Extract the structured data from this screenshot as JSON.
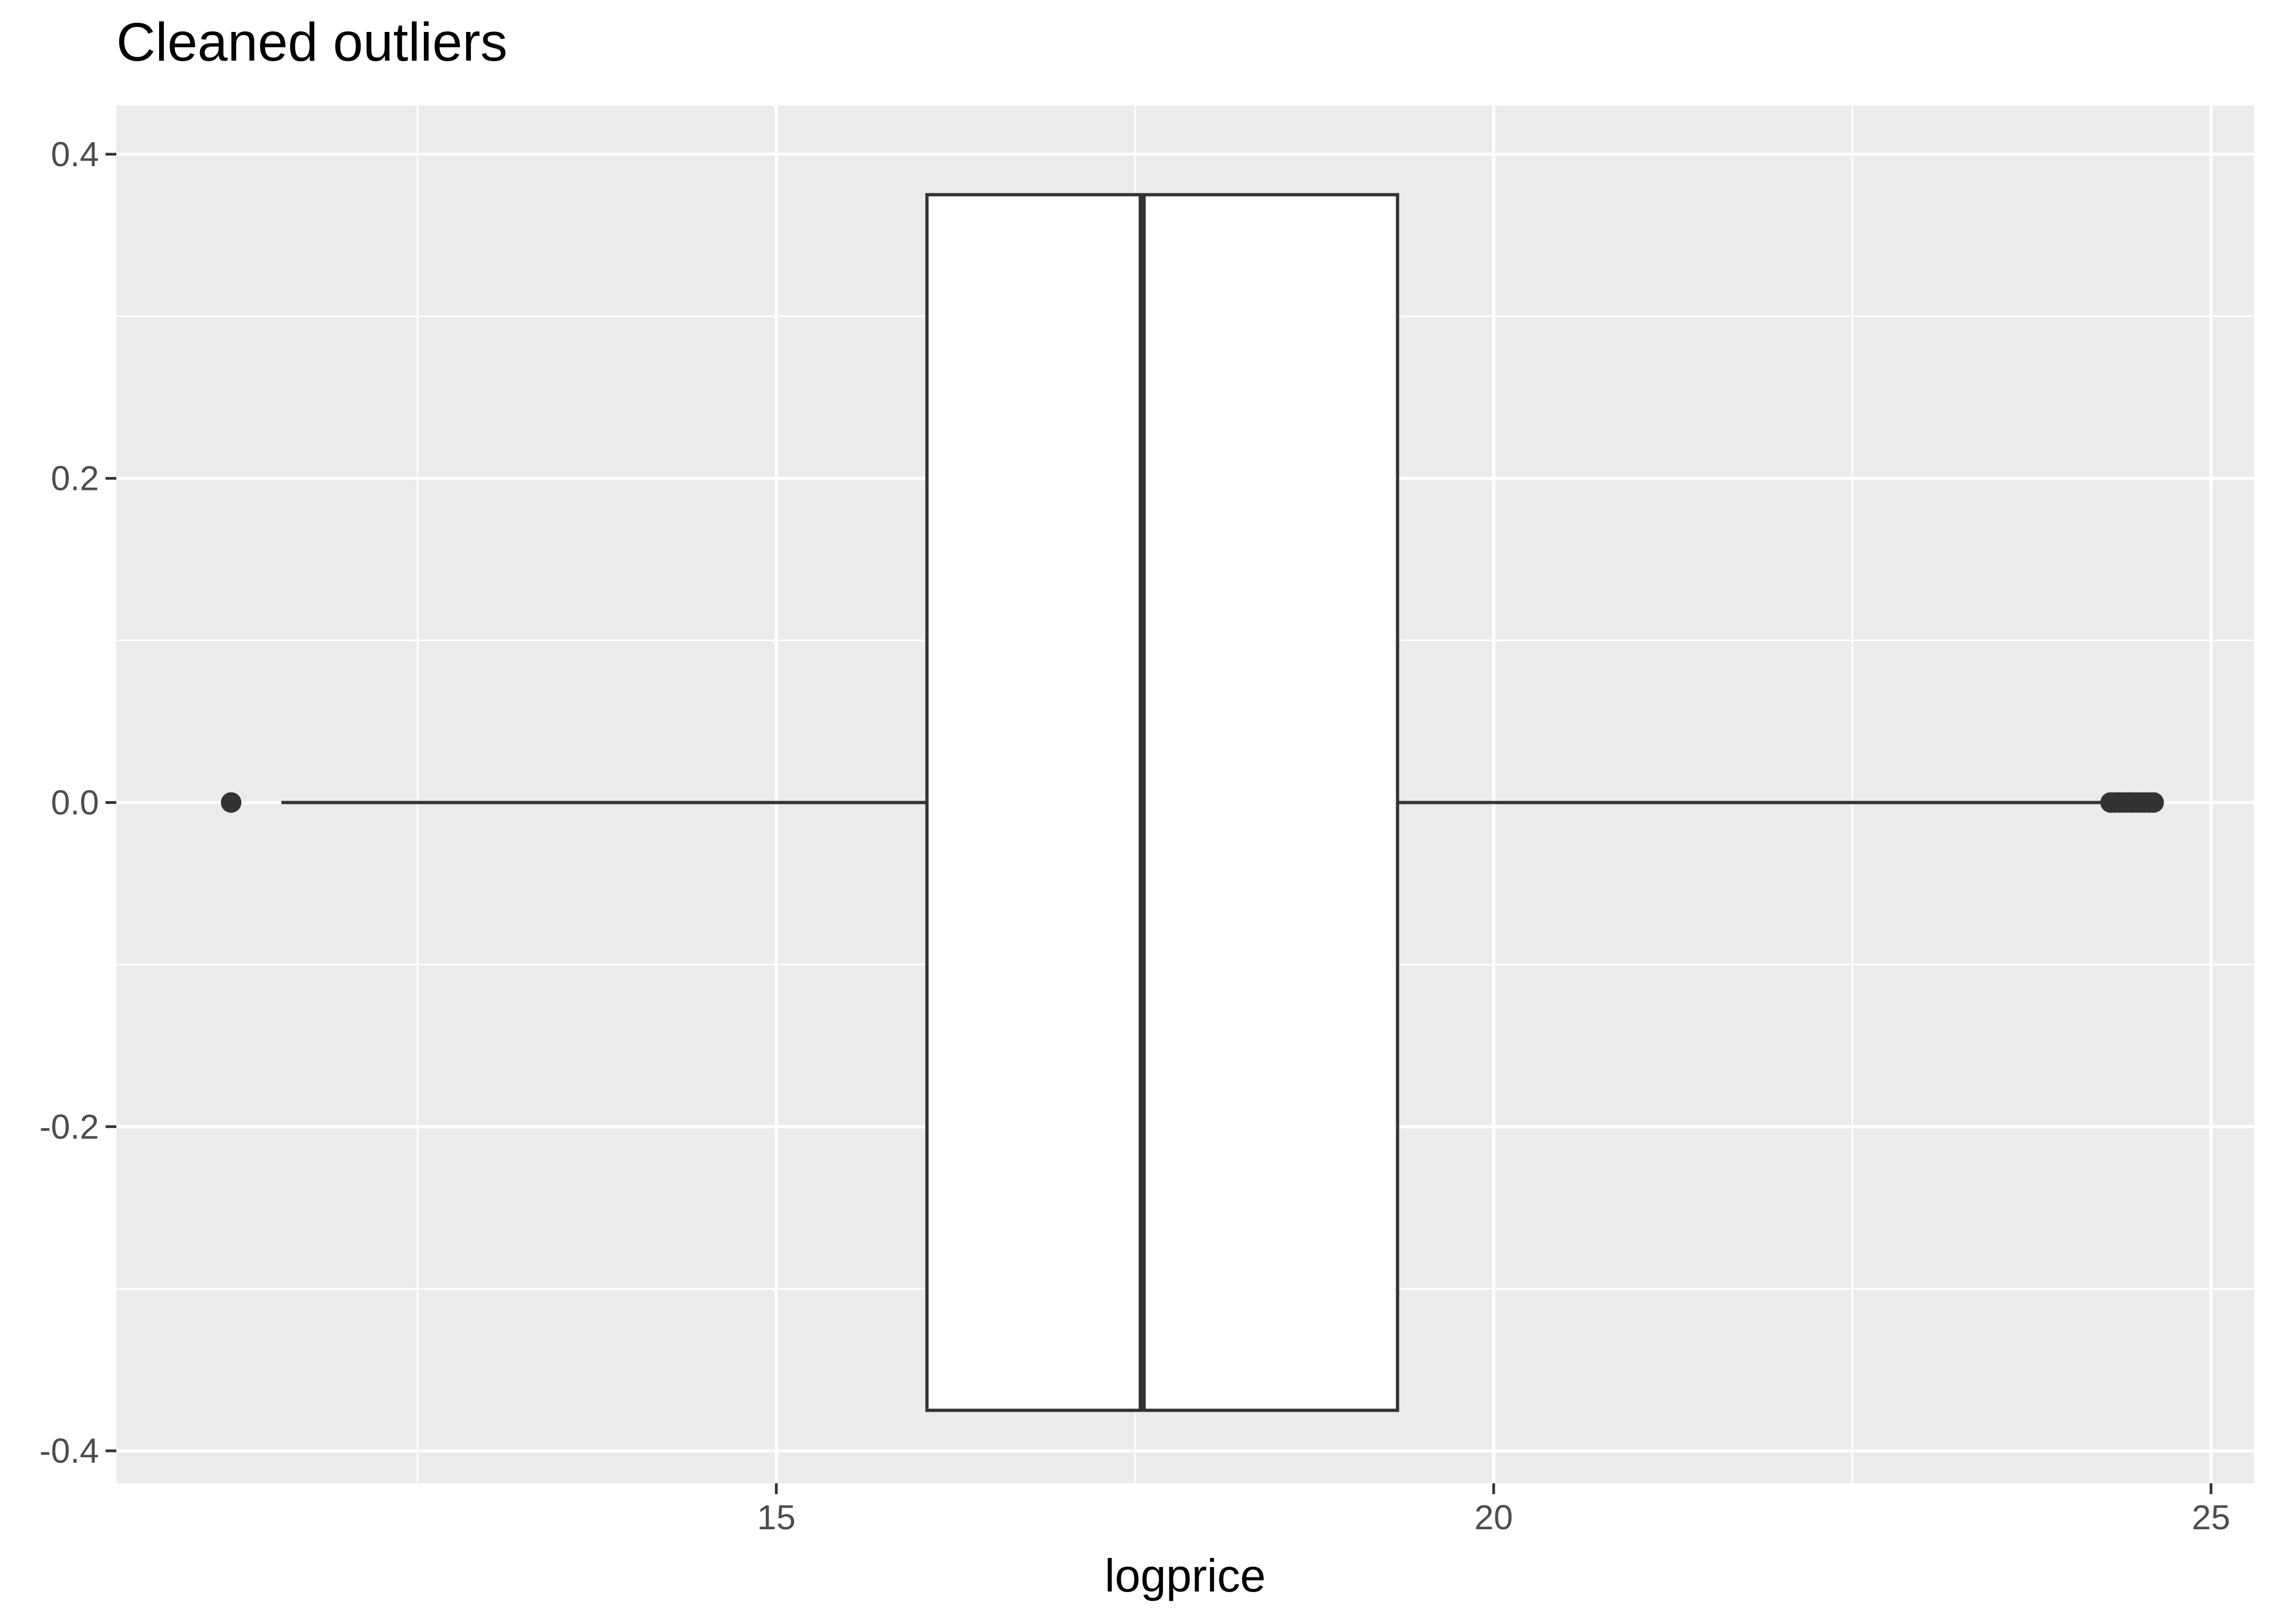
{
  "chart_data": {
    "type": "boxplot",
    "title": "Cleaned outliers",
    "xlabel": "logprice",
    "ylabel": "",
    "xlim": [
      10.4,
      25.3
    ],
    "ylim": [
      -0.42,
      0.43
    ],
    "x_ticks": [
      15,
      20,
      25
    ],
    "x_tick_labels": [
      "15",
      "20",
      "25"
    ],
    "y_ticks": [
      -0.4,
      -0.2,
      0.0,
      0.2,
      0.4
    ],
    "y_tick_labels": [
      "-0.4",
      "-0.2",
      "0.0",
      "0.2",
      "0.4"
    ],
    "x_minor_ticks": [
      12.5,
      17.5,
      22.5
    ],
    "y_minor_ticks": [
      -0.3,
      -0.1,
      0.1,
      0.3
    ],
    "grid": true,
    "legend": "none",
    "box": {
      "whisker_low": 11.55,
      "q1": 16.05,
      "median": 17.55,
      "q3": 19.33,
      "whisker_high": 24.25,
      "y_center": 0.0,
      "half_width": 0.375
    },
    "outliers": [
      11.2,
      24.3,
      24.33,
      24.36,
      24.39,
      24.42,
      24.45,
      24.48,
      24.51,
      24.54,
      24.57,
      24.6
    ],
    "colors": {
      "panel_background": "#ebebeb",
      "grid": "#ffffff",
      "box_fill": "#ffffff",
      "box_line": "#333333",
      "outlier": "#333333"
    }
  }
}
